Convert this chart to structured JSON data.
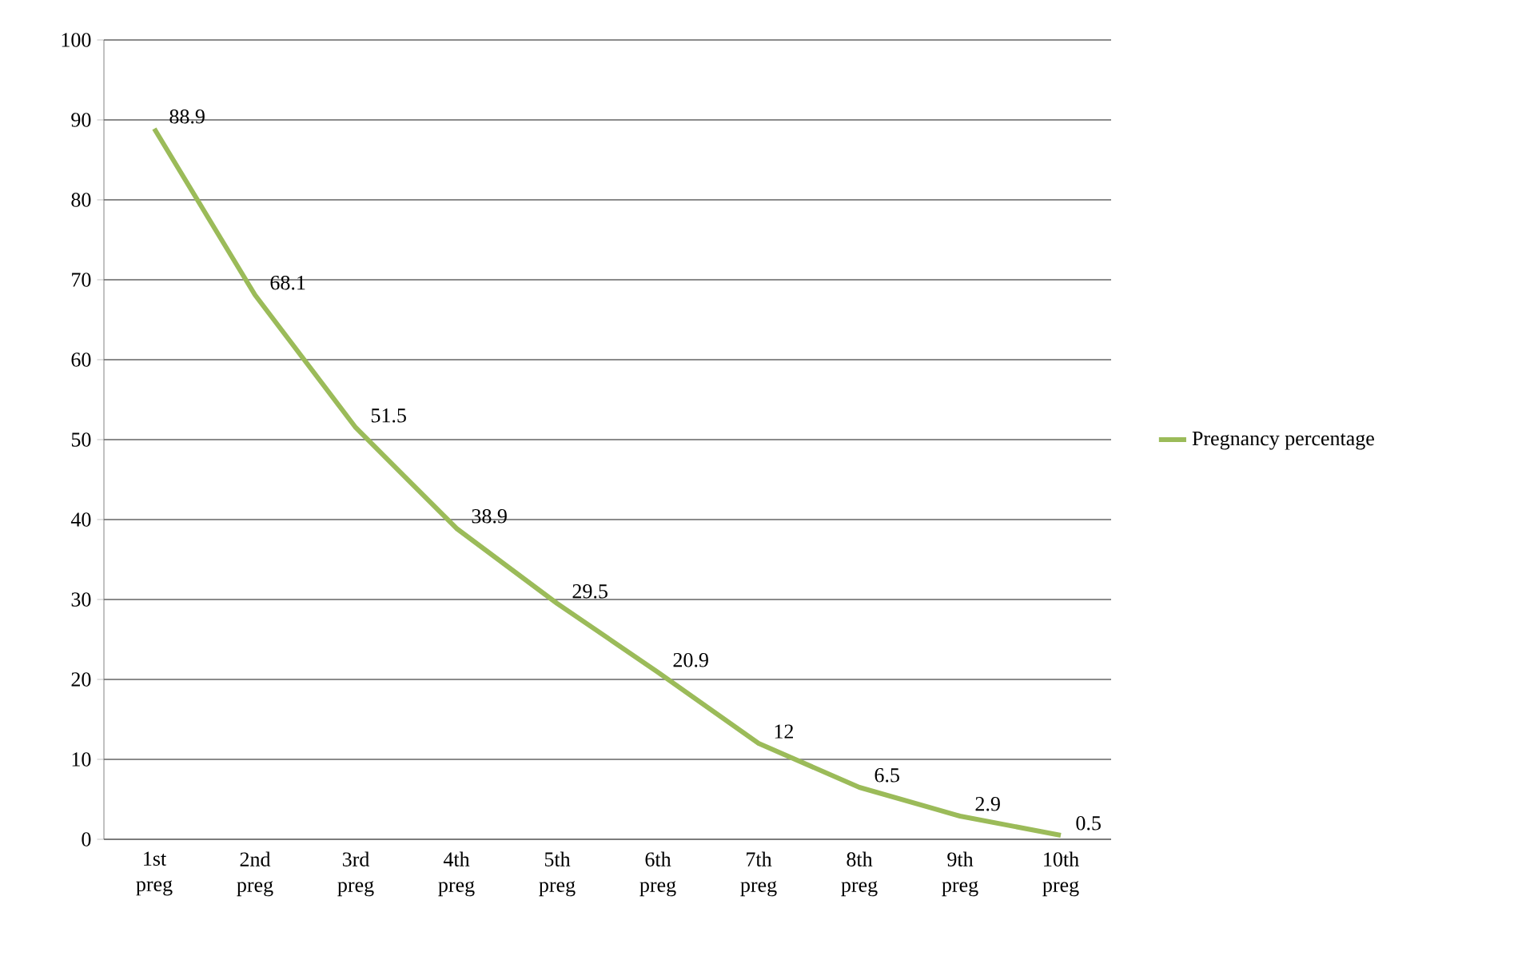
{
  "chart_data": {
    "type": "line",
    "categories": [
      "1st preg",
      "2nd preg",
      "3rd preg",
      "4th preg",
      "5th preg",
      "6th preg",
      "7th preg",
      "8th preg",
      "9th preg",
      "10th preg"
    ],
    "series": [
      {
        "name": "Pregnancy percentage",
        "color": "#9bbb59",
        "values": [
          88.9,
          68.1,
          51.5,
          38.9,
          29.5,
          20.9,
          12,
          6.5,
          2.9,
          0.5
        ]
      }
    ],
    "ylim": [
      0,
      100
    ],
    "yticks": [
      0,
      10,
      20,
      30,
      40,
      50,
      60,
      70,
      80,
      90,
      100
    ],
    "grid": "y",
    "legend": "right",
    "data_labels": true,
    "marker": "none",
    "line_style": "solid"
  }
}
